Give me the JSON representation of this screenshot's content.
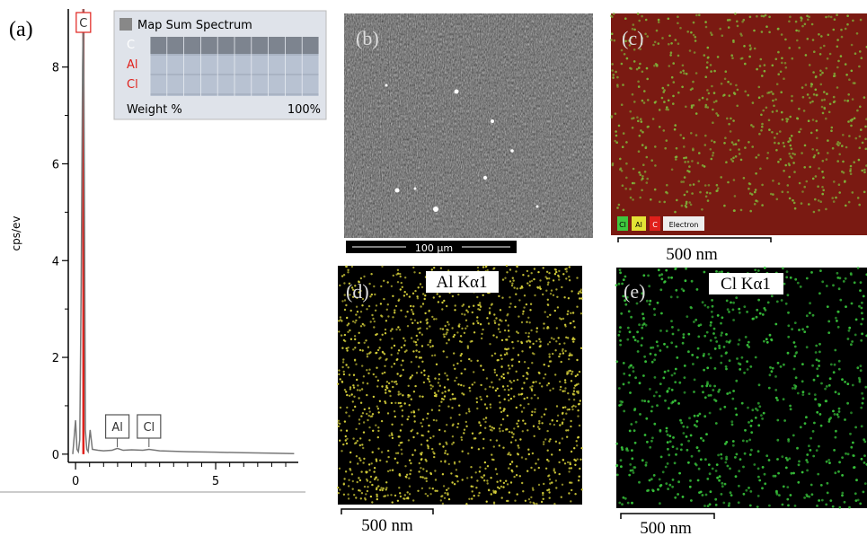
{
  "chart_data": {
    "type": "line",
    "panel_label": "(a)",
    "ylabel": "cps/ev",
    "x": [
      -0.1,
      0,
      0.05,
      0.1,
      0.15,
      0.2,
      0.25,
      0.28,
      0.31,
      0.35,
      0.4,
      0.45,
      0.52,
      0.6,
      0.8,
      1.0,
      1.3,
      1.49,
      1.7,
      2.0,
      2.4,
      2.62,
      3.0,
      4.0,
      5.0,
      6.0,
      7.0,
      7.8
    ],
    "values": [
      0,
      0.7,
      0.1,
      0.05,
      0.3,
      3.5,
      8.0,
      9.2,
      6.0,
      0.5,
      0.1,
      0.05,
      0.5,
      0.1,
      0.08,
      0.07,
      0.08,
      0.12,
      0.08,
      0.09,
      0.08,
      0.1,
      0.07,
      0.05,
      0.04,
      0.03,
      0.02,
      0.01
    ],
    "color": "#777777",
    "xlim": [
      -0.26,
      7.9
    ],
    "ylim": [
      -0.17,
      9.2
    ],
    "xticks": [
      0,
      5
    ],
    "yticks": [
      0,
      2,
      4,
      6,
      8
    ],
    "xticks_minor": [
      0.5,
      1,
      1.5,
      2,
      2.5,
      3,
      3.5,
      4,
      4.5,
      5.5,
      6,
      6.5,
      7,
      7.5
    ],
    "yticks_minor": [
      1,
      3,
      5,
      7
    ],
    "markers": [
      {
        "label": "C",
        "x": 0.28,
        "color": "#e0201b"
      },
      {
        "label": "Al",
        "x": 1.49,
        "color": "#555555"
      },
      {
        "label": "Cl",
        "x": 2.62,
        "color": "#555555"
      }
    ],
    "inset": {
      "title": "Map Sum Spectrum",
      "rows": [
        "C",
        "Al",
        "Cl"
      ],
      "row_colors": [
        "#ffffff",
        "#e0201b",
        "#e0201b"
      ],
      "footer_left": "Weight %",
      "footer_right": "100%"
    }
  },
  "panels": [
    {
      "label": "(b)",
      "scale": "100 µm"
    },
    {
      "label": "(c)",
      "scale": "500 nm",
      "legend": [
        "Cl",
        "Al",
        "C",
        "Electron"
      ]
    },
    {
      "label": "(d)",
      "title": "Al Kα1",
      "scale": "500 nm"
    },
    {
      "label": "(e)",
      "title": "Cl Kα1",
      "scale": "500 nm"
    }
  ]
}
